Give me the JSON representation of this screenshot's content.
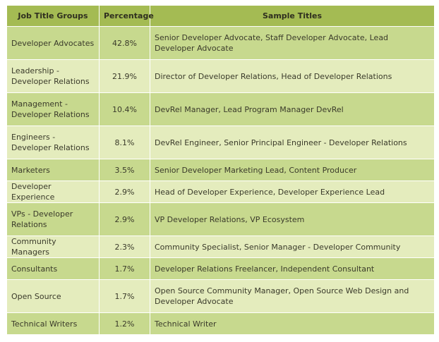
{
  "table": {
    "headers": [
      "Job Title Groups",
      "Percentage",
      "Sample Titles"
    ],
    "rows": [
      [
        "Developer Advocates",
        "42.8%",
        "Senior Developer Advocate, Staff Developer Advocate, Lead Developer Advocate"
      ],
      [
        "Leadership - Developer Relations",
        "21.9%",
        "Director of Developer Relations, Head of Developer Relations"
      ],
      [
        "Management - Developer Relations",
        "10.4%",
        "DevRel Manager, Lead Program Manager DevRel"
      ],
      [
        "Engineers - Developer Relations",
        "8.1%",
        "DevRel Engineer, Senior Principal Engineer - Developer Relations"
      ],
      [
        "Marketers",
        "3.5%",
        "Senior Developer Marketing Lead, Content Producer"
      ],
      [
        "Developer Experience",
        "2.9%",
        "Head of Developer Experience, Developer Experience Lead"
      ],
      [
        "VPs - Developer Relations",
        "2.9%",
        "VP Developer Relations, VP Ecosystem"
      ],
      [
        "Community Managers",
        "2.3%",
        "Community Specialist, Senior Manager - Developer Community"
      ],
      [
        "Consultants",
        "1.7%",
        "Developer Relations Freelancer, Independent Consultant"
      ],
      [
        "Open Source",
        "1.7%",
        "Open Source Community Manager, Open Source Web Design and Developer Advocate"
      ],
      [
        "Technical Writers",
        "1.2%",
        "Technical Writer"
      ]
    ]
  }
}
